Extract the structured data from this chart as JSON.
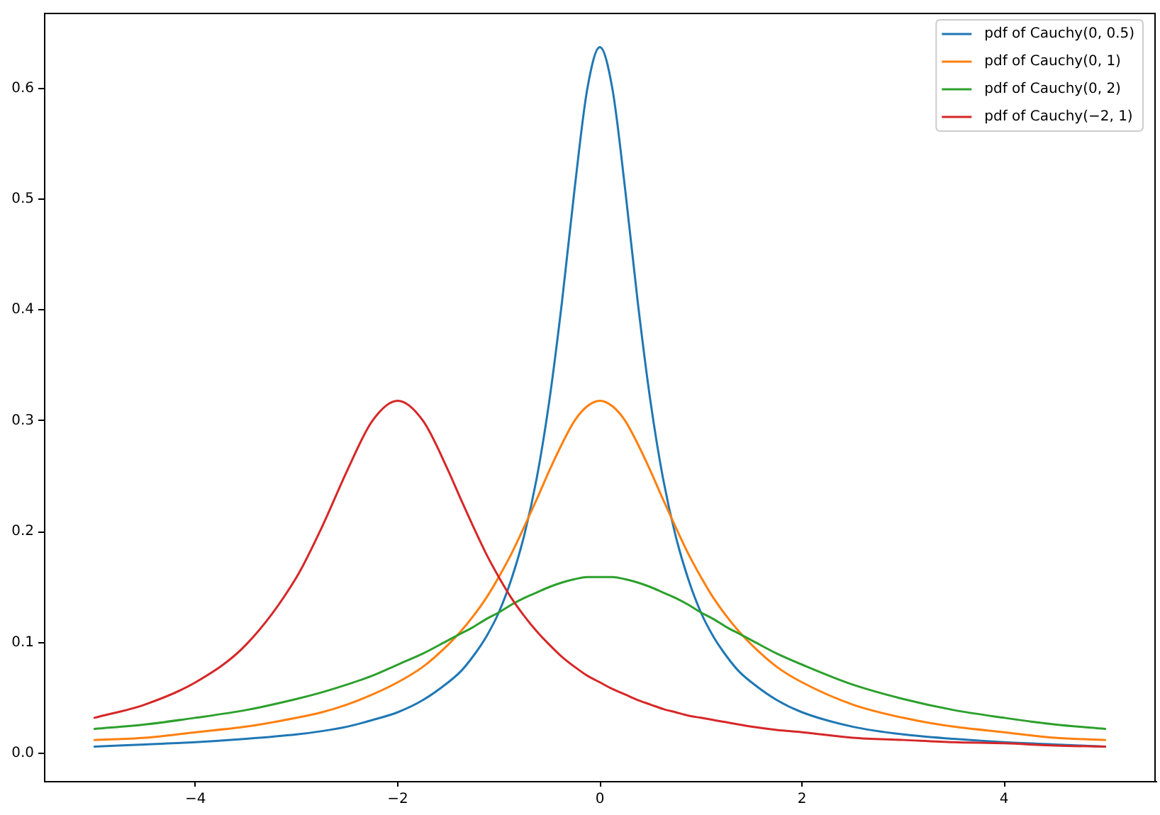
{
  "chart_data": {
    "type": "line",
    "x": [
      -5,
      -4.5,
      -4,
      -3.5,
      -3,
      -2.75,
      -2.5,
      -2.25,
      -2,
      -1.75,
      -1.5,
      -1.375,
      -1.25,
      -1.125,
      -1,
      -0.875,
      -0.75,
      -0.625,
      -0.5,
      -0.375,
      -0.25,
      -0.125,
      0,
      0.125,
      0.25,
      0.375,
      0.5,
      0.625,
      0.75,
      0.875,
      1,
      1.125,
      1.25,
      1.375,
      1.5,
      1.75,
      2,
      2.5,
      3,
      3.5,
      4,
      4.5,
      5
    ],
    "series": [
      {
        "name": "pdf of Cauchy(0, 0.5)",
        "color": "#1f77b4",
        "values": [
          0.006,
          0.008,
          0.01,
          0.013,
          0.017,
          0.02,
          0.024,
          0.03,
          0.037,
          0.048,
          0.064,
          0.074,
          0.088,
          0.105,
          0.127,
          0.157,
          0.196,
          0.248,
          0.318,
          0.407,
          0.509,
          0.599,
          0.637,
          0.599,
          0.509,
          0.407,
          0.318,
          0.248,
          0.196,
          0.157,
          0.127,
          0.105,
          0.088,
          0.074,
          0.064,
          0.048,
          0.037,
          0.024,
          0.017,
          0.013,
          0.01,
          0.008,
          0.006
        ]
      },
      {
        "name": "pdf of Cauchy(0, 1)",
        "color": "#ff7f0e",
        "values": [
          0.012,
          0.014,
          0.019,
          0.024,
          0.032,
          0.037,
          0.044,
          0.053,
          0.064,
          0.078,
          0.098,
          0.11,
          0.124,
          0.14,
          0.159,
          0.18,
          0.204,
          0.229,
          0.255,
          0.279,
          0.3,
          0.313,
          0.318,
          0.313,
          0.3,
          0.279,
          0.255,
          0.229,
          0.204,
          0.18,
          0.159,
          0.14,
          0.124,
          0.11,
          0.098,
          0.078,
          0.064,
          0.044,
          0.032,
          0.024,
          0.019,
          0.014,
          0.012
        ]
      },
      {
        "name": "pdf of Cauchy(0, 2)",
        "color": "#2ca02c",
        "values": [
          0.022,
          0.026,
          0.032,
          0.039,
          0.049,
          0.055,
          0.062,
          0.07,
          0.08,
          0.09,
          0.102,
          0.108,
          0.114,
          0.121,
          0.127,
          0.134,
          0.14,
          0.145,
          0.15,
          0.154,
          0.157,
          0.159,
          0.159,
          0.159,
          0.157,
          0.154,
          0.15,
          0.145,
          0.14,
          0.134,
          0.127,
          0.121,
          0.114,
          0.108,
          0.102,
          0.09,
          0.08,
          0.062,
          0.049,
          0.039,
          0.032,
          0.026,
          0.022
        ]
      },
      {
        "name": "pdf of Cauchy(−2, 1)",
        "color": "#d62728",
        "values": [
          0.032,
          0.044,
          0.064,
          0.098,
          0.159,
          0.204,
          0.255,
          0.3,
          0.318,
          0.3,
          0.255,
          0.229,
          0.204,
          0.18,
          0.159,
          0.14,
          0.124,
          0.11,
          0.098,
          0.087,
          0.078,
          0.07,
          0.064,
          0.058,
          0.053,
          0.048,
          0.044,
          0.04,
          0.037,
          0.034,
          0.032,
          0.03,
          0.028,
          0.026,
          0.024,
          0.021,
          0.019,
          0.014,
          0.012,
          0.01,
          0.009,
          0.007,
          0.006
        ]
      }
    ],
    "xlim": [
      -5.5,
      5.5
    ],
    "ylim": [
      -0.025,
      0.668
    ],
    "xticks": [
      {
        "value": -4,
        "label": "−4"
      },
      {
        "value": -2,
        "label": "−2"
      },
      0,
      2,
      4
    ],
    "yticks": [
      {
        "value": 0,
        "label": "0.0"
      },
      0.1,
      0.2,
      0.3,
      0.4,
      0.5,
      0.6
    ],
    "legend": "top right",
    "grid": false
  }
}
